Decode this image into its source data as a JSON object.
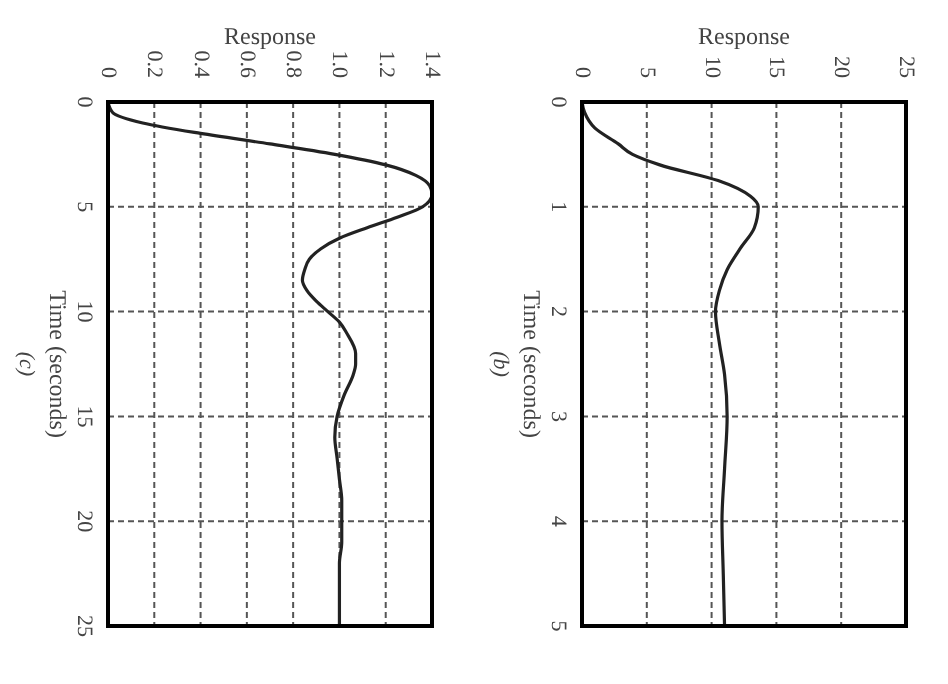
{
  "chart_data": [
    {
      "type": "line",
      "xlabel": "Response",
      "ylabel": "Time (seconds)",
      "annotations": [
        "(c)"
      ],
      "grid": true,
      "marker": "none",
      "line_style": "solid",
      "ylim": [
        25,
        0
      ],
      "yticks": [
        0,
        5,
        10,
        15,
        20,
        25
      ],
      "xlim": [
        0,
        1.4
      ],
      "xticks": [
        0,
        0.2,
        0.4,
        0.6,
        0.8,
        {
          "value": 1,
          "label": "1.0"
        },
        1.2,
        1.4
      ],
      "series": [
        {
          "color": "#222222",
          "x": [
            0,
            0.02,
            0.15,
            0.4,
            0.7,
            0.98,
            1.2,
            1.33,
            1.39,
            1.4,
            1.36,
            1.25,
            1.12,
            1.0,
            0.92,
            0.87,
            0.85,
            0.84,
            0.86,
            0.9,
            0.95,
            1.0,
            1.03,
            1.07,
            1.07,
            1.06,
            1.02,
            0.99,
            0.98,
            0.99,
            1.0,
            1.01,
            1.01,
            1.01,
            1.0,
            1.0
          ],
          "values": [
            0,
            0.5,
            1,
            1.5,
            2,
            2.5,
            3,
            3.5,
            4,
            4.4,
            5,
            5.5,
            6,
            6.5,
            7,
            7.5,
            8,
            8.5,
            9,
            9.5,
            10,
            10.5,
            11,
            12,
            12.5,
            13,
            14,
            15,
            16,
            17,
            18,
            19,
            20,
            21,
            22,
            25
          ]
        }
      ]
    },
    {
      "type": "line",
      "xlabel": "Response",
      "ylabel": "Time (seconds)",
      "annotations": [
        "(b)"
      ],
      "grid": true,
      "marker": "none",
      "line_style": "solid",
      "ylim": [
        5,
        0
      ],
      "yticks": [
        0,
        1,
        2,
        3,
        4,
        5
      ],
      "xlim": [
        0,
        25
      ],
      "xticks": [
        0,
        5,
        10,
        15,
        20,
        25
      ],
      "series": [
        {
          "color": "#222222",
          "x": [
            0,
            0.2,
            1,
            2.8,
            3.9,
            6,
            10.5,
            13,
            13.6,
            13.3,
            12.2,
            11.2,
            10.6,
            10.3,
            10.6,
            11.0,
            11.2,
            11.0,
            10.8,
            10.9,
            11.0
          ],
          "values": [
            0,
            0.1,
            0.25,
            0.4,
            0.5,
            0.6,
            0.75,
            0.9,
            1.0,
            1.2,
            1.4,
            1.6,
            1.8,
            2.0,
            2.3,
            2.6,
            3.0,
            3.5,
            4.0,
            4.5,
            5.0
          ]
        }
      ]
    }
  ]
}
